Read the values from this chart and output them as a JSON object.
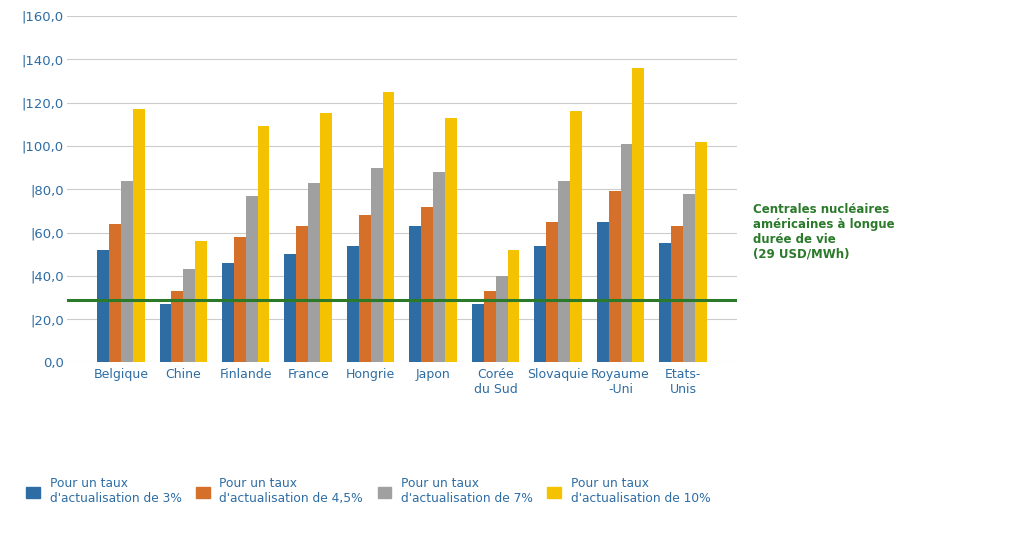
{
  "categories": [
    "Belgique",
    "Chine",
    "Finlande",
    "France",
    "Hongrie",
    "Japon",
    "Corée\ndu Sud",
    "Slovaquie",
    "Royaume\n-Uni",
    "Etats-\nUnis"
  ],
  "series": {
    "3%": [
      52,
      27,
      46,
      50,
      54,
      63,
      27,
      54,
      65,
      55
    ],
    "4.5%": [
      64,
      33,
      58,
      63,
      68,
      72,
      33,
      65,
      79,
      63
    ],
    "7%": [
      84,
      43,
      77,
      83,
      90,
      88,
      40,
      84,
      101,
      78
    ],
    "10%": [
      117,
      56,
      109,
      115,
      125,
      113,
      52,
      116,
      136,
      102
    ]
  },
  "colors": {
    "3%": "#2E6DA4",
    "4.5%": "#D4702A",
    "7%": "#A0A0A0",
    "10%": "#F5C200"
  },
  "legend_labels": {
    "3%": "Pour un taux\nd'actualisation de 3%",
    "4.5%": "Pour un taux\nd'actualisation de 4,5%",
    "7%": "Pour un taux\nd'actualisation de 7%",
    "10%": "Pour un taux\nd'actualisation de 10%"
  },
  "reference_line": 29,
  "reference_label": "Centrales nucléaires\naméricaines à longue\ndurée de vie\n(29 USD/MWh)",
  "reference_color": "#2A7A2A",
  "ylim": [
    0,
    160
  ],
  "yticks": [
    0,
    20,
    40,
    60,
    80,
    100,
    120,
    140,
    160
  ],
  "background_color": "#FFFFFF",
  "grid_color": "#CCCCCC",
  "tick_color": "#2E6DA4"
}
